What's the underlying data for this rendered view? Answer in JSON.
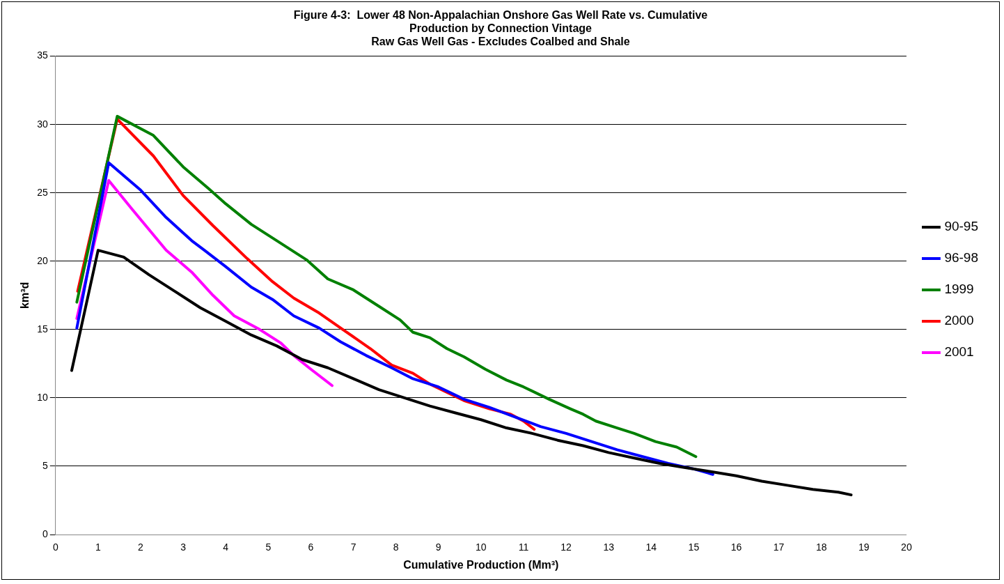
{
  "chart_data": {
    "type": "line",
    "title": [
      "Figure 4-3:  Lower 48 Non-Appalachian Onshore Gas Well Rate vs. Cumulative",
      "Production by Connection Vintage",
      "Raw Gas Well Gas - Excludes Coalbed and Shale"
    ],
    "xlabel": "Cumulative Production (Mm³)",
    "ylabel": "km³d",
    "xlim": [
      0,
      20
    ],
    "xticks": [
      0,
      1,
      2,
      3,
      4,
      5,
      6,
      7,
      8,
      9,
      10,
      11,
      12,
      13,
      14,
      15,
      16,
      17,
      18,
      19,
      20
    ],
    "ylim": [
      0,
      35
    ],
    "yticks": [
      0,
      5,
      10,
      15,
      20,
      25,
      30,
      35
    ],
    "grid": "y",
    "legend": "right",
    "marker": "none",
    "line_style": "solid",
    "series": [
      {
        "name": "90-95",
        "color": "#000000",
        "x": [
          0.38,
          1.0,
          1.6,
          2.2,
          2.8,
          3.4,
          4.0,
          4.6,
          5.2,
          5.8,
          6.4,
          7.0,
          7.6,
          8.2,
          8.8,
          9.4,
          10.0,
          10.6,
          11.2,
          11.8,
          12.4,
          13.0,
          13.6,
          14.2,
          14.8,
          15.4,
          16.0,
          16.6,
          17.2,
          17.8,
          18.4,
          18.7
        ],
        "values": [
          12,
          20.8,
          20.3,
          19,
          17.8,
          16.6,
          15.6,
          14.6,
          13.8,
          12.8,
          12.2,
          11.4,
          10.6,
          10.0,
          9.4,
          8.9,
          8.4,
          7.8,
          7.4,
          6.9,
          6.5,
          6.0,
          5.6,
          5.2,
          4.9,
          4.6,
          4.3,
          3.9,
          3.6,
          3.3,
          3.1,
          2.9
        ]
      },
      {
        "name": "96-98",
        "color": "#0000ff",
        "x": [
          0.5,
          1.25,
          2.0,
          2.6,
          3.2,
          3.5,
          4.0,
          4.6,
          5.1,
          5.6,
          6.2,
          6.7,
          7.3,
          7.9,
          8.4,
          9.0,
          9.6,
          10.2,
          10.8,
          11.4,
          12.0,
          12.6,
          13.2,
          13.8,
          14.4,
          15.0,
          15.45
        ],
        "values": [
          15.1,
          27.2,
          25.2,
          23.2,
          21.5,
          20.8,
          19.6,
          18.1,
          17.2,
          16.0,
          15.1,
          14.1,
          13.1,
          12.2,
          11.4,
          10.8,
          9.9,
          9.3,
          8.6,
          7.9,
          7.4,
          6.8,
          6.2,
          5.7,
          5.2,
          4.8,
          4.4
        ]
      },
      {
        "name": "1999",
        "color": "#008000",
        "x": [
          0.5,
          1.45,
          2.3,
          3.0,
          3.6,
          4.0,
          4.6,
          5.2,
          5.9,
          6.4,
          7.0,
          7.6,
          8.1,
          8.4,
          8.8,
          9.2,
          9.6,
          10.1,
          10.6,
          11.0,
          11.6,
          12.1,
          12.4,
          12.7,
          13.2,
          13.6,
          14.1,
          14.6,
          15.05
        ],
        "values": [
          17,
          30.6,
          29.2,
          26.9,
          25.3,
          24.2,
          22.7,
          21.5,
          20.1,
          18.7,
          17.9,
          16.7,
          15.7,
          14.8,
          14.4,
          13.6,
          13.0,
          12.1,
          11.3,
          10.8,
          9.9,
          9.2,
          8.8,
          8.3,
          7.8,
          7.4,
          6.8,
          6.4,
          5.7
        ]
      },
      {
        "name": "2000",
        "color": "#ff0000",
        "x": [
          0.52,
          1.45,
          2.3,
          3.0,
          3.7,
          4.5,
          5.1,
          5.6,
          6.2,
          6.8,
          7.4,
          7.9,
          8.4,
          8.8,
          9.6,
          10.2,
          10.7,
          11.0,
          11.25
        ],
        "values": [
          17.8,
          30.4,
          27.7,
          24.8,
          22.6,
          20.2,
          18.5,
          17.3,
          16.2,
          14.9,
          13.6,
          12.4,
          11.8,
          11.0,
          9.8,
          9.2,
          8.8,
          8.3,
          7.7
        ]
      },
      {
        "name": "2001",
        "color": "#ff00ff",
        "x": [
          0.5,
          1.25,
          1.8,
          2.6,
          3.2,
          3.7,
          4.2,
          4.8,
          5.3,
          5.6,
          6.0,
          6.5
        ],
        "values": [
          15.8,
          25.9,
          23.8,
          20.8,
          19.2,
          17.5,
          16.0,
          15.0,
          14.0,
          13.1,
          12.1,
          10.9
        ]
      }
    ]
  }
}
